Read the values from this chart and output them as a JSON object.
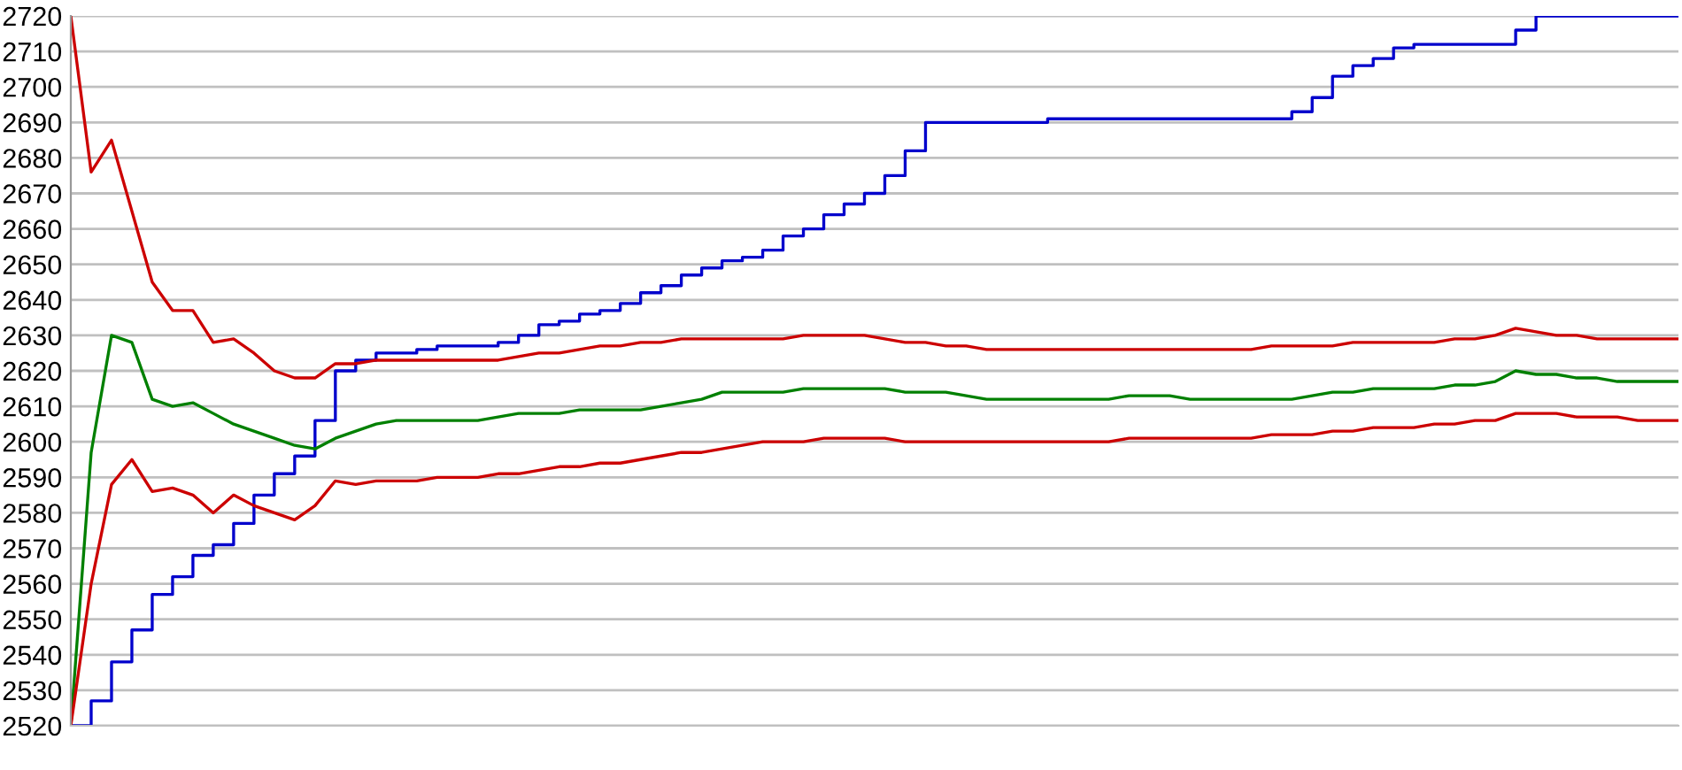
{
  "chart_data": {
    "type": "line",
    "categories": [
      null,
      null,
      null,
      null,
      null,
      null,
      null,
      null,
      null,
      null,
      null,
      null,
      null,
      null,
      null,
      null,
      null,
      null,
      null,
      null,
      null,
      null,
      null,
      null,
      null,
      null,
      null,
      null,
      null,
      null,
      null,
      null,
      null,
      null,
      null,
      null,
      null,
      null,
      null,
      null,
      null,
      null,
      null,
      null,
      null,
      null,
      null,
      null,
      null,
      null,
      null,
      null,
      null,
      null,
      null,
      null,
      null,
      null,
      null,
      null,
      null,
      null,
      null,
      null,
      null,
      null,
      null,
      null,
      null,
      null,
      null,
      null,
      null,
      null,
      null,
      null,
      null,
      null,
      null,
      null
    ],
    "series": [
      {
        "color": "#0000cc",
        "type": "step",
        "values": [
          2520,
          2527,
          2538,
          2547,
          2557,
          2562,
          2568,
          2571,
          2577,
          2585,
          2591,
          2596,
          2606,
          2620,
          2623,
          2625,
          2625,
          2626,
          2627,
          2627,
          2627,
          2628,
          2630,
          2633,
          2634,
          2636,
          2637,
          2639,
          2642,
          2644,
          2647,
          2649,
          2651,
          2652,
          2654,
          2658,
          2660,
          2664,
          2667,
          2670,
          2675,
          2682,
          2690,
          2690,
          2690,
          2690,
          2690,
          2690,
          2691,
          2691,
          2691,
          2691,
          2691,
          2691,
          2691,
          2691,
          2691,
          2691,
          2691,
          2691,
          2693,
          2697,
          2703,
          2706,
          2708,
          2711,
          2712,
          2712,
          2712,
          2712,
          2712,
          2716,
          2720,
          2720,
          2720,
          2720,
          2720,
          2720,
          2720,
          2720
        ]
      },
      {
        "color": "#cc0000",
        "values": [
          2720,
          2676,
          2685,
          2665,
          2645,
          2637,
          2637,
          2628,
          2629,
          2625,
          2620,
          2618,
          2618,
          2622,
          2622,
          2623,
          2623,
          2623,
          2623,
          2623,
          2623,
          2623,
          2624,
          2625,
          2625,
          2626,
          2627,
          2627,
          2628,
          2628,
          2629,
          2629,
          2629,
          2629,
          2629,
          2629,
          2630,
          2630,
          2630,
          2630,
          2629,
          2628,
          2628,
          2627,
          2627,
          2626,
          2626,
          2626,
          2626,
          2626,
          2626,
          2626,
          2626,
          2626,
          2626,
          2626,
          2626,
          2626,
          2626,
          2627,
          2627,
          2627,
          2627,
          2628,
          2628,
          2628,
          2628,
          2628,
          2629,
          2629,
          2630,
          2632,
          2631,
          2630,
          2630,
          2629,
          2629,
          2629,
          2629,
          2629
        ]
      },
      {
        "color": "#008000",
        "values": [
          2520,
          2597,
          2630,
          2628,
          2612,
          2610,
          2611,
          2608,
          2605,
          2603,
          2601,
          2599,
          2598,
          2601,
          2603,
          2605,
          2606,
          2606,
          2606,
          2606,
          2606,
          2607,
          2608,
          2608,
          2608,
          2609,
          2609,
          2609,
          2609,
          2610,
          2611,
          2612,
          2614,
          2614,
          2614,
          2614,
          2615,
          2615,
          2615,
          2615,
          2615,
          2614,
          2614,
          2614,
          2613,
          2612,
          2612,
          2612,
          2612,
          2612,
          2612,
          2612,
          2613,
          2613,
          2613,
          2612,
          2612,
          2612,
          2612,
          2612,
          2612,
          2613,
          2614,
          2614,
          2615,
          2615,
          2615,
          2615,
          2616,
          2616,
          2617,
          2620,
          2619,
          2619,
          2618,
          2618,
          2617,
          2617,
          2617,
          2617
        ]
      },
      {
        "color": "#cc0000",
        "values": [
          2520,
          2560,
          2588,
          2595,
          2586,
          2587,
          2585,
          2580,
          2585,
          2582,
          2580,
          2578,
          2582,
          2589,
          2588,
          2589,
          2589,
          2589,
          2590,
          2590,
          2590,
          2591,
          2591,
          2592,
          2593,
          2593,
          2594,
          2594,
          2595,
          2596,
          2597,
          2597,
          2598,
          2599,
          2600,
          2600,
          2600,
          2601,
          2601,
          2601,
          2601,
          2600,
          2600,
          2600,
          2600,
          2600,
          2600,
          2600,
          2600,
          2600,
          2600,
          2600,
          2601,
          2601,
          2601,
          2601,
          2601,
          2601,
          2601,
          2602,
          2602,
          2602,
          2603,
          2603,
          2604,
          2604,
          2604,
          2605,
          2605,
          2606,
          2606,
          2608,
          2608,
          2608,
          2607,
          2607,
          2607,
          2606,
          2606,
          2606
        ]
      }
    ],
    "ylim": [
      2520,
      2720
    ],
    "yticks": [
      2520,
      2530,
      2540,
      2550,
      2560,
      2570,
      2580,
      2590,
      2600,
      2610,
      2620,
      2630,
      2640,
      2650,
      2660,
      2670,
      2680,
      2690,
      2700,
      2710,
      2720
    ],
    "grid": "y",
    "tick_labels": "y",
    "marker": "none",
    "line_style": "solid"
  }
}
